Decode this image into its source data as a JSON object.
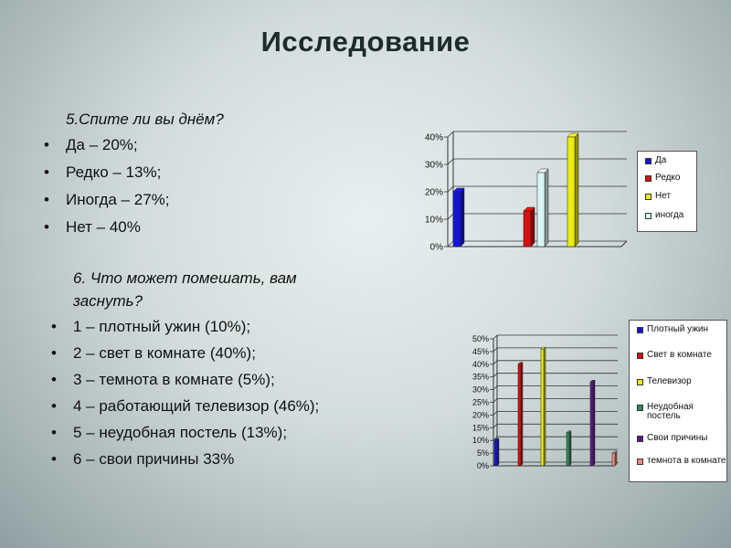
{
  "slide": {
    "title": "Исследование"
  },
  "section1": {
    "question": "5.Спите ли вы днём?",
    "items": [
      "Да – 20%;",
      "Редко – 13%;",
      "Иногда – 27%;",
      "Нет – 40%"
    ]
  },
  "section2": {
    "question": "6. Что может помешать, вам заснуть?",
    "items": [
      "1 – плотный ужин (10%);",
      "2 – свет в комнате (40%);",
      "3 – темнота в комнате (5%);",
      "4 – работающий телевизор (46%);",
      "5 – неудобная постель (13%);",
      "6 –  свои причины 33%"
    ]
  },
  "colors": {
    "blue": "#1515d8",
    "red": "#d41010",
    "yellow": "#ecec10",
    "lightcyan": "#d8f4f4",
    "green": "#2e8b57",
    "purple": "#5b1a88",
    "salmon": "#f08b7a"
  },
  "chart_data": [
    {
      "type": "bar",
      "ylim": [
        0,
        40
      ],
      "yticks": [
        "0%",
        "10%",
        "20%",
        "30%",
        "40%"
      ],
      "legend_position": "right",
      "series": [
        {
          "name": "Да",
          "value": 20,
          "color": "#1515d8"
        },
        {
          "name": "Редко",
          "value": 13,
          "color": "#d41010"
        },
        {
          "name": "Нет",
          "value": 40,
          "color": "#ecec10"
        },
        {
          "name": "иногда",
          "value": 27,
          "color": "#d8f4f4"
        }
      ]
    },
    {
      "type": "bar",
      "ylim": [
        0,
        50
      ],
      "yticks": [
        "0%",
        "5%",
        "10%",
        "15%",
        "20%",
        "25%",
        "30%",
        "35%",
        "40%",
        "45%",
        "50%"
      ],
      "legend_position": "right",
      "series": [
        {
          "name": "Плотный ужин",
          "value": 10,
          "color": "#1515d8"
        },
        {
          "name": "Свет в комнате",
          "value": 40,
          "color": "#d41010"
        },
        {
          "name": "Телевизор",
          "value": 46,
          "color": "#ecec10"
        },
        {
          "name": "Неудобная постель",
          "value": 13,
          "color": "#2e8b57"
        },
        {
          "name": "Свои причины",
          "value": 33,
          "color": "#5b1a88"
        },
        {
          "name": "темнота в комнате",
          "value": 5,
          "color": "#f08b7a"
        }
      ]
    }
  ]
}
